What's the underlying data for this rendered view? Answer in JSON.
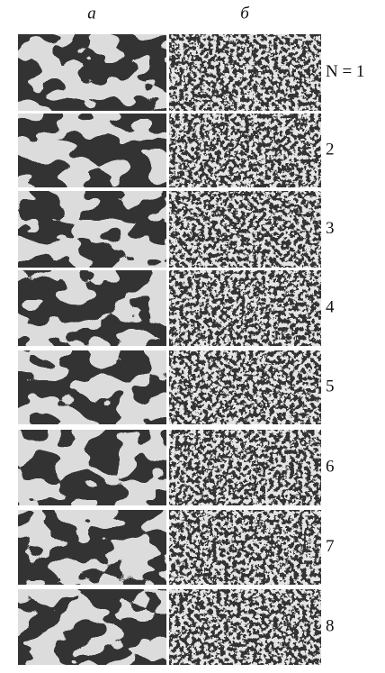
{
  "column_labels": [
    "а",
    "б"
  ],
  "rows": [
    {
      "label": "N = 1"
    },
    {
      "label": "2"
    },
    {
      "label": "3"
    },
    {
      "label": "4"
    },
    {
      "label": "5"
    },
    {
      "label": "6"
    },
    {
      "label": "7"
    },
    {
      "label": "8"
    }
  ]
}
